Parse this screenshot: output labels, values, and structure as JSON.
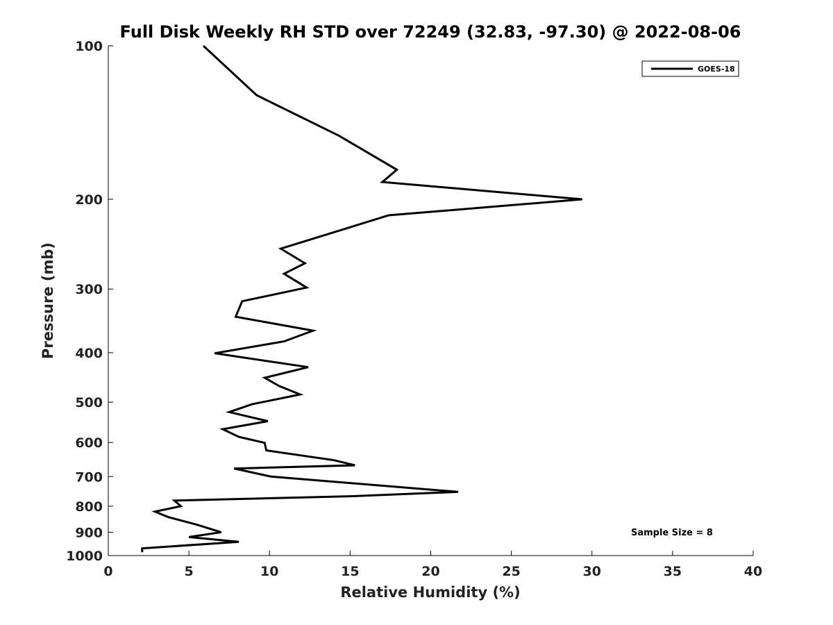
{
  "chart_data": {
    "type": "line",
    "title": "Full Disk Weekly RH STD over 72249 (32.83, -97.30) @ 2022-08-06",
    "xlabel": "Relative Humidity (%)",
    "ylabel": "Pressure (mb)",
    "xlim": [
      0,
      40
    ],
    "ylim": [
      100,
      1000
    ],
    "yscale": "log",
    "y_inverted": true,
    "xticks": [
      0,
      5,
      10,
      15,
      20,
      25,
      30,
      35,
      40
    ],
    "yticks": [
      100,
      200,
      300,
      400,
      500,
      600,
      700,
      800,
      900,
      1000
    ],
    "grid": false,
    "legend_position": "top-right",
    "series": [
      {
        "name": "GOES-18",
        "color": "#000000",
        "points": [
          [
            5.9,
            100
          ],
          [
            9.2,
            125
          ],
          [
            14.3,
            150
          ],
          [
            17.9,
            175
          ],
          [
            17.0,
            185
          ],
          [
            29.4,
            200
          ],
          [
            17.4,
            215
          ],
          [
            10.7,
            250
          ],
          [
            12.2,
            267
          ],
          [
            10.9,
            280
          ],
          [
            12.3,
            298
          ],
          [
            8.3,
            317
          ],
          [
            7.9,
            340
          ],
          [
            12.7,
            362
          ],
          [
            10.9,
            380
          ],
          [
            6.6,
            401
          ],
          [
            12.4,
            427
          ],
          [
            9.7,
            448
          ],
          [
            10.6,
            465
          ],
          [
            11.9,
            483
          ],
          [
            8.9,
            505
          ],
          [
            7.5,
            523
          ],
          [
            9.9,
            545
          ],
          [
            7.1,
            565
          ],
          [
            8.1,
            585
          ],
          [
            9.7,
            601
          ],
          [
            9.8,
            622
          ],
          [
            14.0,
            650
          ],
          [
            15.3,
            665
          ],
          [
            7.8,
            675
          ],
          [
            10.1,
            700
          ],
          [
            21.7,
            750
          ],
          [
            15.0,
            765
          ],
          [
            4.1,
            780
          ],
          [
            4.5,
            800
          ],
          [
            2.9,
            820
          ],
          [
            3.7,
            840
          ],
          [
            5.5,
            870
          ],
          [
            7.0,
            900
          ],
          [
            5.0,
            920
          ],
          [
            8.1,
            940
          ],
          [
            2.1,
            968
          ],
          [
            2.1,
            985
          ]
        ]
      }
    ],
    "annotations": [
      "Sample Size = 8"
    ]
  }
}
